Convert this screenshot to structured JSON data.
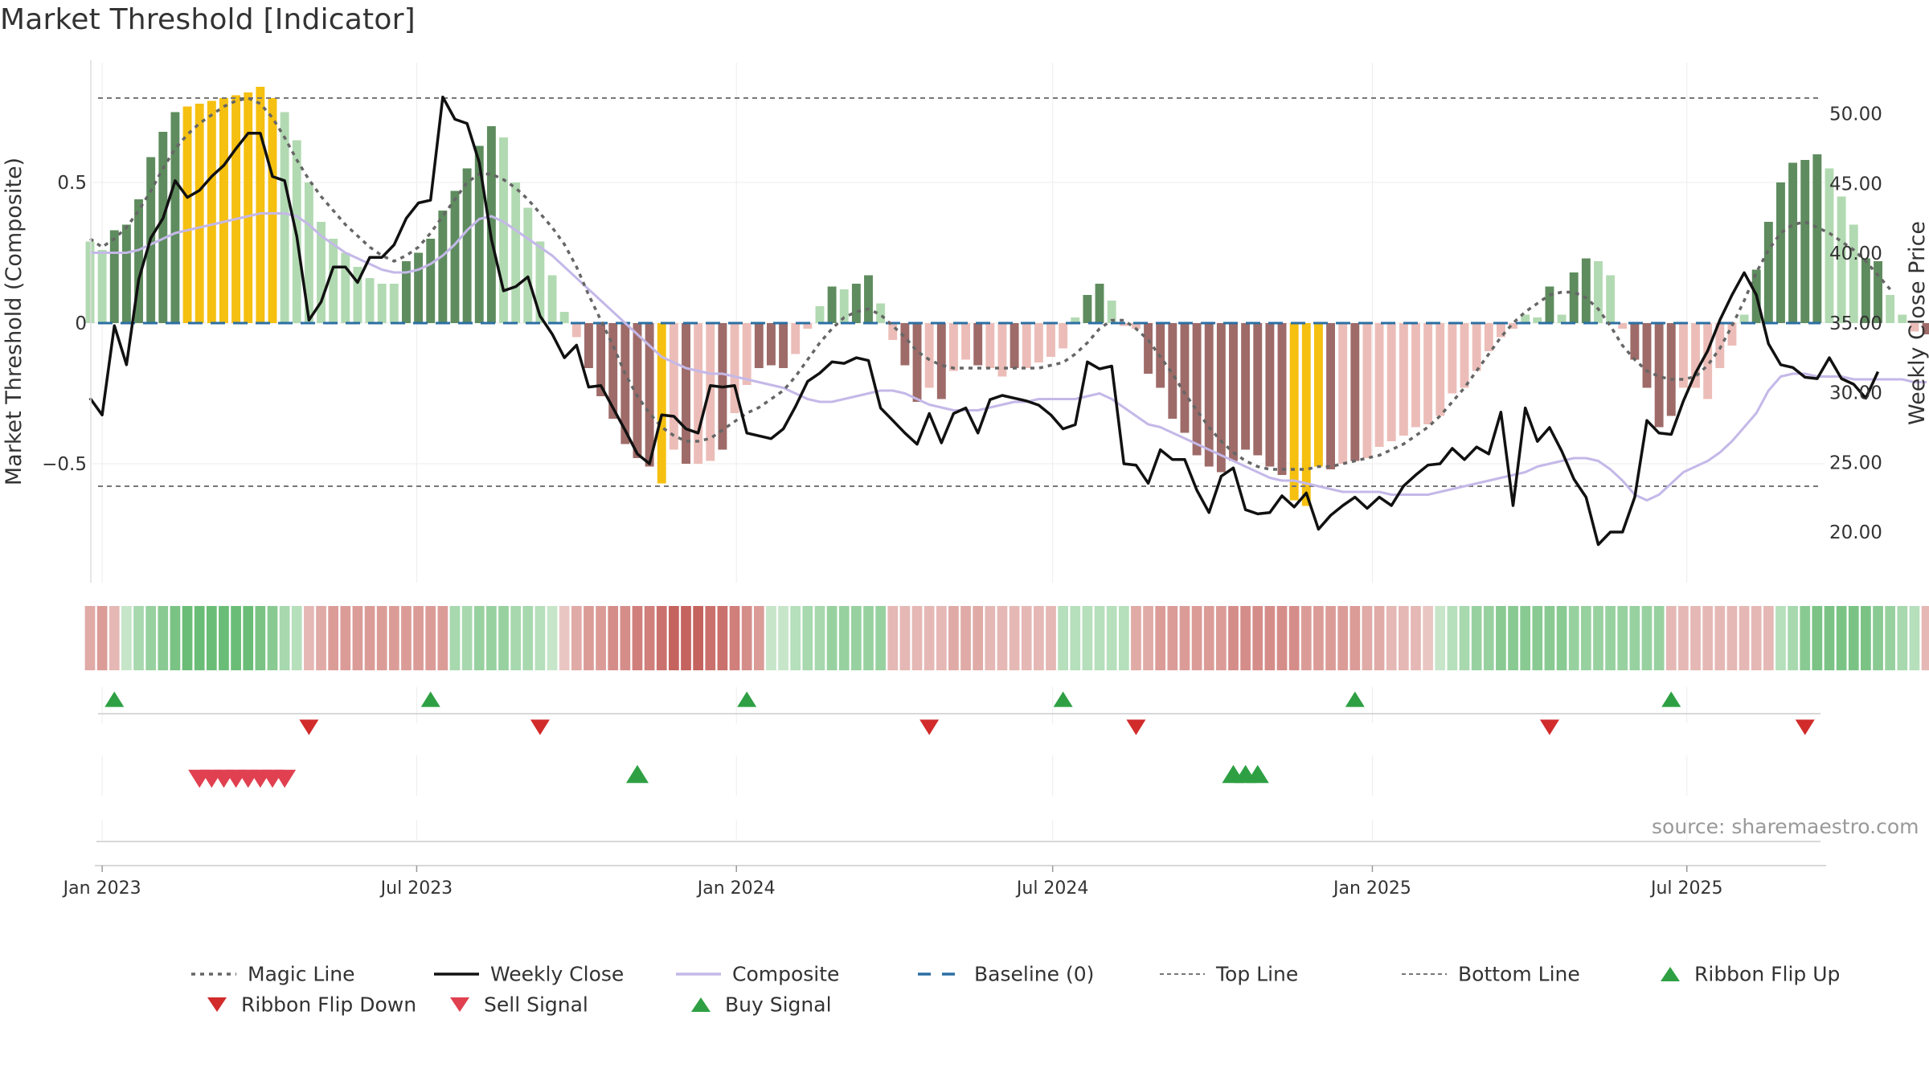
{
  "title": "Market Threshold [Indicator]",
  "source": "source: sharemaestro.com",
  "colors": {
    "magic": "#666666",
    "close": "#111111",
    "composite": "#c4b8e8",
    "baseline": "#2b6fa3",
    "refline": "#777777",
    "bull_dark": "#5e8c5e",
    "bull_light": "#b2dab2",
    "bear_dark": "#9e6b68",
    "bear_light": "#ecbdb8",
    "extreme": "#f5c010",
    "flip_down": "#d12b2b",
    "sell": "#e04050",
    "buy": "#2ea043"
  },
  "chart_data": {
    "type": "bar",
    "title": "Market Threshold [Indicator]",
    "ylabel_left": "Market Threshold (Composite)",
    "ylabel_right": "Weekly Close Price",
    "ylim_left": [
      -0.93,
      0.93
    ],
    "ylim_right": [
      15.8,
      53.0
    ],
    "left_ticks": [
      -0.5,
      0,
      0.5
    ],
    "left_tick_labels": [
      "−0.5",
      "0",
      "0.5"
    ],
    "right_ticks": [
      20,
      25,
      30,
      35,
      40,
      45,
      50
    ],
    "right_tick_labels": [
      "20.00",
      "25.00",
      "30.00",
      "35.00",
      "40.00",
      "45.00",
      "50.00"
    ],
    "x_ticks": [
      "2023-01-01",
      "2023-07-01",
      "2024-01-01",
      "2024-07-01",
      "2025-01-01",
      "2025-07-01"
    ],
    "x_tick_labels": [
      "Jan 2023",
      "Jul 2023",
      "Jan 2024",
      "Jul 2024",
      "Jan 2025",
      "Jul 2025"
    ],
    "x_range": [
      "2022-12-25",
      "2025-09-21"
    ],
    "top_line": 0.8,
    "bottom_line": -0.58,
    "baseline": 0,
    "grid": true,
    "series": [
      {
        "name": "Magic Line",
        "kind": "composite-axis"
      },
      {
        "name": "Weekly Close",
        "kind": "price-axis"
      },
      {
        "name": "Composite",
        "kind": "composite-axis"
      },
      {
        "name": "Baseline (0)"
      },
      {
        "name": "Top Line"
      },
      {
        "name": "Bottom Line"
      },
      {
        "name": "Ribbon Flip Up"
      },
      {
        "name": "Ribbon Flip Down"
      },
      {
        "name": "Sell Signal"
      },
      {
        "name": "Buy Signal"
      }
    ],
    "week_start": "2022-12-25",
    "composite_bars": [
      0.29,
      0.26,
      0.33,
      0.35,
      0.44,
      0.59,
      0.68,
      0.75,
      0.77,
      0.78,
      0.79,
      0.8,
      0.81,
      0.82,
      0.84,
      0.8,
      0.75,
      0.65,
      0.5,
      0.36,
      0.3,
      0.25,
      0.2,
      0.16,
      0.14,
      0.14,
      0.22,
      0.25,
      0.3,
      0.4,
      0.47,
      0.55,
      0.63,
      0.7,
      0.66,
      0.5,
      0.41,
      0.29,
      0.17,
      0.04,
      -0.05,
      -0.16,
      -0.26,
      -0.34,
      -0.43,
      -0.48,
      -0.51,
      -0.57,
      -0.45,
      -0.5,
      -0.5,
      -0.49,
      -0.45,
      -0.32,
      -0.22,
      -0.16,
      -0.15,
      -0.16,
      -0.11,
      -0.02,
      0.06,
      0.13,
      0.12,
      0.14,
      0.17,
      0.07,
      -0.06,
      -0.15,
      -0.28,
      -0.23,
      -0.27,
      -0.17,
      -0.13,
      -0.15,
      -0.16,
      -0.19,
      -0.16,
      -0.16,
      -0.14,
      -0.12,
      -0.09,
      0.02,
      0.1,
      0.14,
      0.08,
      -0.01,
      -0.02,
      -0.18,
      -0.23,
      -0.34,
      -0.39,
      -0.47,
      -0.51,
      -0.53,
      -0.49,
      -0.45,
      -0.47,
      -0.51,
      -0.54,
      -0.63,
      -0.65,
      -0.51,
      -0.52,
      -0.5,
      -0.49,
      -0.48,
      -0.44,
      -0.42,
      -0.4,
      -0.37,
      -0.36,
      -0.33,
      -0.25,
      -0.23,
      -0.17,
      -0.1,
      -0.05,
      -0.02,
      0.03,
      0.02,
      0.13,
      0.03,
      0.18,
      0.23,
      0.22,
      0.17,
      -0.02,
      -0.13,
      -0.23,
      -0.37,
      -0.33,
      -0.23,
      -0.23,
      -0.27,
      -0.16,
      -0.08,
      0.03,
      0.19,
      0.36,
      0.5,
      0.57,
      0.58,
      0.6,
      0.55,
      0.45,
      0.35,
      0.23,
      0.22,
      0.1,
      0.03,
      -0.03,
      -0.04
    ],
    "bar_class": [
      "L",
      "L",
      "D",
      "D",
      "D",
      "D",
      "D",
      "D",
      "E",
      "E",
      "E",
      "E",
      "E",
      "E",
      "E",
      "E",
      "L",
      "L",
      "L",
      "L",
      "L",
      "L",
      "L",
      "L",
      "L",
      "L",
      "D",
      "D",
      "D",
      "D",
      "D",
      "D",
      "D",
      "D",
      "L",
      "L",
      "L",
      "L",
      "L",
      "L",
      "B",
      "BD",
      "BD",
      "BD",
      "BD",
      "BD",
      "BD",
      "E",
      "B",
      "BD",
      "B",
      "B",
      "BD",
      "B",
      "B",
      "BD",
      "BD",
      "BD",
      "B",
      "B",
      "L",
      "D",
      "L",
      "D",
      "D",
      "L",
      "B",
      "BD",
      "BD",
      "B",
      "BD",
      "B",
      "B",
      "BD",
      "B",
      "B",
      "BD",
      "B",
      "B",
      "B",
      "B",
      "L",
      "D",
      "D",
      "L",
      "B",
      "B",
      "BD",
      "BD",
      "BD",
      "BD",
      "BD",
      "BD",
      "BD",
      "BD",
      "BD",
      "BD",
      "BD",
      "BD",
      "E",
      "E",
      "E",
      "BD",
      "B",
      "BD",
      "B",
      "B",
      "B",
      "B",
      "B",
      "B",
      "B",
      "B",
      "B",
      "B",
      "B",
      "B",
      "B",
      "L",
      "L",
      "D",
      "L",
      "D",
      "D",
      "L",
      "L",
      "B",
      "BD",
      "BD",
      "BD",
      "BD",
      "B",
      "B",
      "B",
      "B",
      "B",
      "L",
      "D",
      "D",
      "D",
      "D",
      "D",
      "D",
      "L",
      "L",
      "L",
      "D",
      "D",
      "L",
      "L",
      "B",
      "BD"
    ],
    "weekly_close": [
      29.6,
      28.4,
      34.8,
      32.0,
      38.1,
      41.1,
      42.5,
      45.2,
      44.0,
      44.5,
      45.5,
      46.3,
      47.5,
      48.6,
      48.6,
      45.5,
      45.2,
      41.2,
      35.2,
      36.5,
      39.0,
      39.0,
      37.9,
      39.7,
      39.7,
      40.6,
      42.5,
      43.6,
      43.8,
      51.2,
      49.6,
      49.3,
      46.5,
      41.0,
      37.3,
      37.6,
      38.3,
      35.5,
      34.2,
      32.5,
      33.4,
      30.4,
      30.5,
      28.9,
      27.3,
      25.6,
      24.9,
      28.4,
      28.3,
      27.4,
      27.1,
      30.5,
      30.4,
      30.5,
      27.1,
      26.9,
      26.7,
      27.4,
      29.0,
      30.8,
      31.4,
      32.2,
      32.1,
      32.5,
      32.3,
      28.9,
      28.0,
      27.1,
      26.3,
      28.5,
      26.4,
      28.5,
      28.9,
      27.1,
      29.5,
      29.8,
      29.6,
      29.4,
      29.1,
      28.4,
      27.4,
      27.7,
      32.2,
      31.7,
      31.9,
      24.9,
      24.8,
      23.5,
      25.9,
      25.2,
      25.2,
      23.0,
      21.4,
      24.0,
      24.6,
      21.6,
      21.3,
      21.4,
      22.6,
      21.8,
      22.8,
      20.2,
      21.2,
      21.9,
      22.5,
      21.7,
      22.5,
      21.9,
      23.3,
      24.1,
      24.8,
      24.9,
      26.0,
      25.2,
      26.1,
      25.6,
      28.6,
      21.9,
      28.9,
      26.5,
      27.5,
      25.8,
      23.8,
      22.5,
      19.1,
      20.0,
      20.0,
      22.5,
      28.0,
      27.1,
      27.0,
      29.4,
      31.4,
      33.0,
      35.2,
      37.0,
      38.6,
      37.0,
      33.5,
      32.0,
      31.8,
      31.1,
      31.0,
      32.5,
      31.0,
      30.6,
      29.6,
      31.5
    ],
    "composite_line": [
      0.25,
      0.25,
      0.25,
      0.25,
      0.26,
      0.28,
      0.3,
      0.32,
      0.33,
      0.34,
      0.35,
      0.36,
      0.37,
      0.38,
      0.39,
      0.39,
      0.39,
      0.38,
      0.35,
      0.31,
      0.28,
      0.25,
      0.23,
      0.21,
      0.19,
      0.18,
      0.18,
      0.19,
      0.21,
      0.24,
      0.28,
      0.33,
      0.37,
      0.38,
      0.36,
      0.33,
      0.3,
      0.27,
      0.24,
      0.2,
      0.16,
      0.12,
      0.08,
      0.04,
      0.0,
      -0.04,
      -0.08,
      -0.12,
      -0.14,
      -0.16,
      -0.17,
      -0.18,
      -0.18,
      -0.19,
      -0.2,
      -0.21,
      -0.22,
      -0.23,
      -0.25,
      -0.27,
      -0.28,
      -0.28,
      -0.27,
      -0.26,
      -0.25,
      -0.24,
      -0.24,
      -0.25,
      -0.27,
      -0.29,
      -0.3,
      -0.31,
      -0.31,
      -0.31,
      -0.3,
      -0.29,
      -0.28,
      -0.28,
      -0.27,
      -0.27,
      -0.27,
      -0.27,
      -0.26,
      -0.25,
      -0.27,
      -0.3,
      -0.33,
      -0.36,
      -0.37,
      -0.39,
      -0.41,
      -0.43,
      -0.45,
      -0.47,
      -0.49,
      -0.51,
      -0.53,
      -0.55,
      -0.56,
      -0.56,
      -0.57,
      -0.58,
      -0.59,
      -0.6,
      -0.6,
      -0.6,
      -0.6,
      -0.61,
      -0.61,
      -0.61,
      -0.61,
      -0.6,
      -0.59,
      -0.58,
      -0.57,
      -0.56,
      -0.55,
      -0.54,
      -0.53,
      -0.51,
      -0.5,
      -0.49,
      -0.48,
      -0.48,
      -0.49,
      -0.52,
      -0.56,
      -0.61,
      -0.63,
      -0.61,
      -0.57,
      -0.53,
      -0.51,
      -0.49,
      -0.46,
      -0.42,
      -0.37,
      -0.32,
      -0.24,
      -0.19,
      -0.18,
      -0.18,
      -0.19,
      -0.19,
      -0.19,
      -0.2,
      -0.2,
      -0.2,
      -0.2,
      -0.2,
      -0.21,
      -0.21
    ],
    "magic_line": [
      0.3,
      0.27,
      0.3,
      0.34,
      0.4,
      0.47,
      0.55,
      0.62,
      0.67,
      0.71,
      0.74,
      0.77,
      0.79,
      0.8,
      0.78,
      0.73,
      0.66,
      0.58,
      0.51,
      0.45,
      0.4,
      0.35,
      0.31,
      0.27,
      0.24,
      0.22,
      0.24,
      0.27,
      0.32,
      0.38,
      0.44,
      0.5,
      0.53,
      0.53,
      0.51,
      0.48,
      0.44,
      0.39,
      0.34,
      0.28,
      0.2,
      0.1,
      0.01,
      -0.08,
      -0.18,
      -0.26,
      -0.32,
      -0.37,
      -0.4,
      -0.42,
      -0.42,
      -0.41,
      -0.38,
      -0.35,
      -0.32,
      -0.3,
      -0.27,
      -0.24,
      -0.19,
      -0.13,
      -0.07,
      -0.02,
      0.02,
      0.04,
      0.05,
      0.03,
      -0.01,
      -0.05,
      -0.1,
      -0.13,
      -0.15,
      -0.16,
      -0.16,
      -0.16,
      -0.16,
      -0.16,
      -0.16,
      -0.16,
      -0.16,
      -0.15,
      -0.14,
      -0.11,
      -0.07,
      -0.02,
      0.01,
      0.01,
      -0.02,
      -0.06,
      -0.12,
      -0.18,
      -0.25,
      -0.31,
      -0.37,
      -0.42,
      -0.46,
      -0.49,
      -0.51,
      -0.52,
      -0.52,
      -0.52,
      -0.52,
      -0.51,
      -0.51,
      -0.5,
      -0.49,
      -0.48,
      -0.47,
      -0.45,
      -0.43,
      -0.4,
      -0.37,
      -0.33,
      -0.28,
      -0.23,
      -0.17,
      -0.11,
      -0.05,
      0.0,
      0.04,
      0.07,
      0.1,
      0.11,
      0.11,
      0.09,
      0.05,
      -0.01,
      -0.08,
      -0.13,
      -0.17,
      -0.19,
      -0.2,
      -0.2,
      -0.19,
      -0.15,
      -0.09,
      -0.01,
      0.08,
      0.18,
      0.26,
      0.32,
      0.35,
      0.36,
      0.34,
      0.32,
      0.29,
      0.26,
      0.22,
      0.17,
      0.12
    ],
    "ribbon": [
      -0.4,
      -0.5,
      -0.3,
      0.2,
      0.4,
      0.5,
      0.6,
      0.7,
      0.8,
      0.8,
      0.8,
      0.8,
      0.8,
      0.8,
      0.7,
      0.6,
      0.4,
      0.3,
      -0.3,
      -0.4,
      -0.5,
      -0.5,
      -0.5,
      -0.5,
      -0.5,
      -0.5,
      -0.5,
      -0.5,
      -0.5,
      -0.5,
      0.4,
      0.4,
      0.5,
      0.5,
      0.5,
      0.4,
      0.4,
      0.3,
      0.2,
      -0.2,
      -0.4,
      -0.5,
      -0.5,
      -0.6,
      -0.6,
      -0.7,
      -0.7,
      -0.8,
      -0.9,
      -0.9,
      -0.9,
      -0.8,
      -0.8,
      -0.7,
      -0.6,
      -0.5,
      0.2,
      0.2,
      0.3,
      0.4,
      0.4,
      0.5,
      0.5,
      0.5,
      0.5,
      0.5,
      -0.3,
      -0.3,
      -0.3,
      -0.3,
      -0.3,
      -0.4,
      -0.4,
      -0.4,
      -0.3,
      -0.3,
      -0.3,
      -0.3,
      -0.3,
      -0.3,
      0.3,
      0.3,
      0.3,
      0.3,
      0.3,
      0.3,
      -0.4,
      -0.4,
      -0.5,
      -0.5,
      -0.5,
      -0.5,
      -0.5,
      -0.5,
      -0.6,
      -0.6,
      -0.6,
      -0.6,
      -0.6,
      -0.6,
      -0.5,
      -0.5,
      -0.5,
      -0.5,
      -0.5,
      -0.4,
      -0.4,
      -0.3,
      -0.3,
      -0.3,
      -0.2,
      0.2,
      0.3,
      0.4,
      0.5,
      0.5,
      0.6,
      0.6,
      0.6,
      0.6,
      0.6,
      0.6,
      0.5,
      0.5,
      0.5,
      0.5,
      0.5,
      0.5,
      0.5,
      0.5,
      -0.3,
      -0.3,
      -0.3,
      -0.3,
      -0.3,
      -0.3,
      -0.3,
      -0.3,
      -0.3,
      0.3,
      0.4,
      0.6,
      0.7,
      0.7,
      0.7,
      0.7,
      0.7,
      0.6,
      0.5,
      0.4,
      0.3,
      -0.3,
      -0.3,
      -0.3
    ],
    "ribbon_flip_up": [
      "2023-01-08",
      "2023-07-09",
      "2024-01-07",
      "2024-07-07",
      "2024-12-22",
      "2025-06-22"
    ],
    "ribbon_flip_down": [
      "2023-04-30",
      "2023-09-10",
      "2024-04-21",
      "2024-08-18",
      "2025-04-13",
      "2025-09-07"
    ],
    "sell_signal": [
      "2023-02-26",
      "2023-03-05",
      "2023-03-12",
      "2023-03-19",
      "2023-03-26",
      "2023-04-02",
      "2023-04-09",
      "2023-04-16"
    ],
    "buy_signal": [
      "2023-11-05",
      "2024-10-13",
      "2024-10-20",
      "2024-10-27"
    ]
  }
}
